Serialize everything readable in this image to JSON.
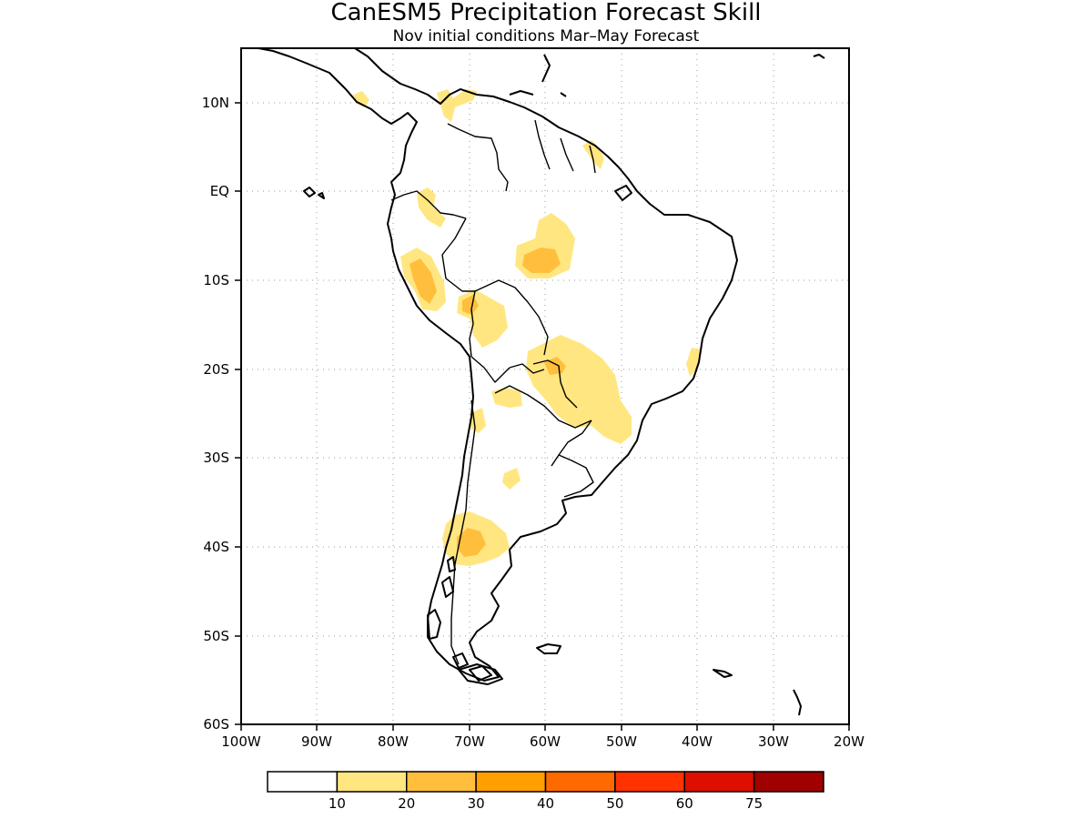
{
  "title": "CanESM5 Precipitation Forecast Skill",
  "subtitle": "Nov initial conditions  Mar–May Forecast",
  "lat_ticks": [
    "10N",
    "EQ",
    "10S",
    "20S",
    "30S",
    "40S",
    "50S",
    "60S"
  ],
  "lon_ticks": [
    "100W",
    "90W",
    "80W",
    "70W",
    "60W",
    "50W",
    "40W",
    "30W",
    "20W"
  ],
  "colorbar": {
    "colors": [
      "#ffffff",
      "#ffe680",
      "#ffbf3c",
      "#ff9f00",
      "#ff6a00",
      "#ff3200",
      "#dc0f00",
      "#a00000"
    ],
    "labels": [
      "10",
      "20",
      "30",
      "40",
      "50",
      "60",
      "75"
    ]
  },
  "map_extent": {
    "lon": [
      -100,
      -20
    ],
    "lat": [
      -60,
      15
    ]
  }
}
